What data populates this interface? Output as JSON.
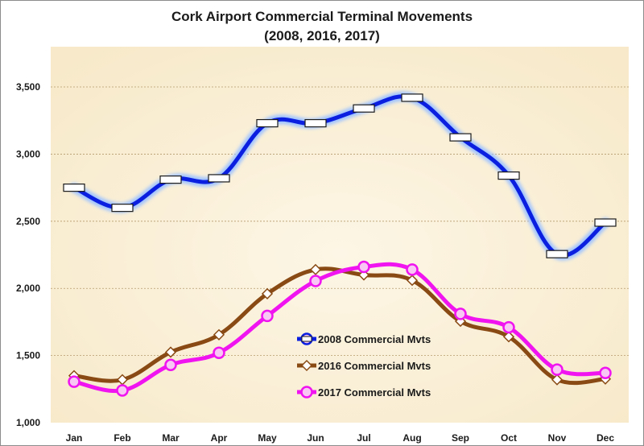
{
  "chart_data": {
    "type": "line",
    "title": "Cork Airport Commercial  Terminal Movements",
    "subtitle": "(2008, 2016, 2017)",
    "xlabel": "",
    "ylabel": "",
    "categories": [
      "Jan",
      "Feb",
      "Mar",
      "Apr",
      "May",
      "Jun",
      "Jul",
      "Aug",
      "Sep",
      "Oct",
      "Nov",
      "Dec"
    ],
    "y_ticks": [
      "1,000",
      "1,500",
      "2,000",
      "2,500",
      "3,000",
      "3,500"
    ],
    "ylim": [
      1000,
      3800
    ],
    "grid": "horizontal dotted",
    "legend_position": "center-bottom",
    "series": [
      {
        "name": "2008 Commercial Mvts",
        "color": "#0a1fe0",
        "glow": "#9fc3ff",
        "marker": "bar",
        "values": [
          2750,
          2600,
          2810,
          2820,
          3230,
          3230,
          3340,
          3420,
          3125,
          2840,
          2255,
          2490
        ]
      },
      {
        "name": "2016 Commercial Mvts",
        "color": "#8a4a14",
        "marker": "diamond",
        "values": [
          1350,
          1320,
          1525,
          1655,
          1960,
          2140,
          2100,
          2060,
          1755,
          1640,
          1320,
          1325
        ]
      },
      {
        "name": "2017 Commercial Mvts",
        "color": "#f014f0",
        "marker": "circle",
        "values": [
          1305,
          1240,
          1430,
          1520,
          1795,
          2055,
          2160,
          2140,
          1810,
          1710,
          1395,
          1370
        ]
      }
    ],
    "colors": {
      "plot_bg": "#f7e9c9",
      "plot_bg_center": "#fdf6e6",
      "grid": "#b49a6c"
    }
  }
}
